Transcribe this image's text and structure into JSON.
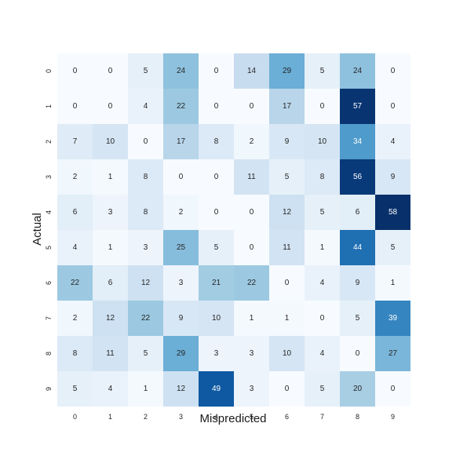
{
  "chart_data": {
    "type": "heatmap",
    "title": "",
    "xlabel": "Mispredicted",
    "ylabel": "Actual",
    "x_categories": [
      "0",
      "1",
      "2",
      "3",
      "4",
      "5",
      "6",
      "7",
      "8",
      "9"
    ],
    "y_categories": [
      "0",
      "1",
      "2",
      "3",
      "4",
      "5",
      "6",
      "7",
      "8",
      "9"
    ],
    "values": [
      [
        0,
        0,
        5,
        24,
        0,
        14,
        29,
        5,
        24,
        0
      ],
      [
        0,
        0,
        4,
        22,
        0,
        0,
        17,
        0,
        57,
        0
      ],
      [
        7,
        10,
        0,
        17,
        8,
        2,
        9,
        10,
        34,
        4
      ],
      [
        2,
        1,
        8,
        0,
        0,
        11,
        5,
        8,
        56,
        9
      ],
      [
        6,
        3,
        8,
        2,
        0,
        0,
        12,
        5,
        6,
        58
      ],
      [
        4,
        1,
        3,
        25,
        5,
        0,
        11,
        1,
        44,
        5
      ],
      [
        22,
        6,
        12,
        3,
        21,
        22,
        0,
        4,
        9,
        1
      ],
      [
        2,
        12,
        22,
        9,
        10,
        1,
        1,
        0,
        5,
        39
      ],
      [
        8,
        11,
        5,
        29,
        3,
        3,
        10,
        4,
        0,
        27
      ],
      [
        5,
        4,
        1,
        12,
        49,
        3,
        0,
        5,
        20,
        0
      ]
    ],
    "colormap": "Blues",
    "vmin": 0,
    "vmax": 58,
    "colorbar": false,
    "grid": false
  }
}
